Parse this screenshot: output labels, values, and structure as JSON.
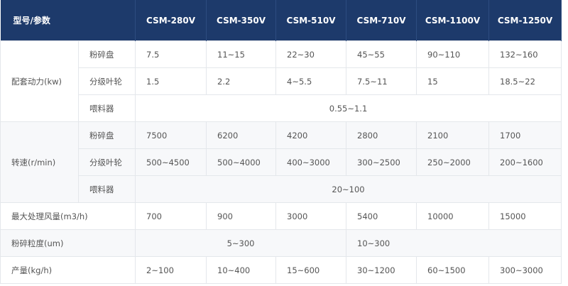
{
  "table": {
    "header": [
      "型号/参数",
      "CSM-280V",
      "CSM-350V",
      "CSM-510V",
      "CSM-710V",
      "CSM-1100V",
      "CSM-1250V"
    ],
    "groups": [
      {
        "label": "配套动力(kw)",
        "rows": [
          {
            "name": "粉碎盘",
            "values": [
              "7.5",
              "11~15",
              "22~30",
              "45~55",
              "90~110",
              "132~160"
            ]
          },
          {
            "name": "分级叶轮",
            "values": [
              "1.5",
              "2.2",
              "4~5.5",
              "7.5~11",
              "15",
              "18.5~22"
            ]
          },
          {
            "name": "喂料器",
            "values": [
              "0.55~1.1"
            ]
          }
        ]
      },
      {
        "label": "转速(r/min)",
        "rows": [
          {
            "name": "粉碎盘",
            "values": [
              "7500",
              "6200",
              "4200",
              "2800",
              "2100",
              "1700"
            ]
          },
          {
            "name": "分级叶轮",
            "values": [
              "500~4500",
              "500~4000",
              "400~3000",
              "300~2500",
              "250~2000",
              "200~1600"
            ]
          },
          {
            "name": "喂料器",
            "values": [
              "20~100"
            ]
          }
        ]
      }
    ],
    "rows": [
      {
        "label": "最大处理风量(m3/h)",
        "values": [
          "700",
          "900",
          "3000",
          "5400",
          "10000",
          "15000"
        ]
      },
      {
        "label": "粉碎粒度(um)",
        "values": [
          "5~300",
          "10~300"
        ]
      },
      {
        "label": "产量(kg/h)",
        "values": [
          "2~100",
          "10~400",
          "15~600",
          "30~1200",
          "60~1500",
          "300~3000"
        ]
      }
    ]
  }
}
